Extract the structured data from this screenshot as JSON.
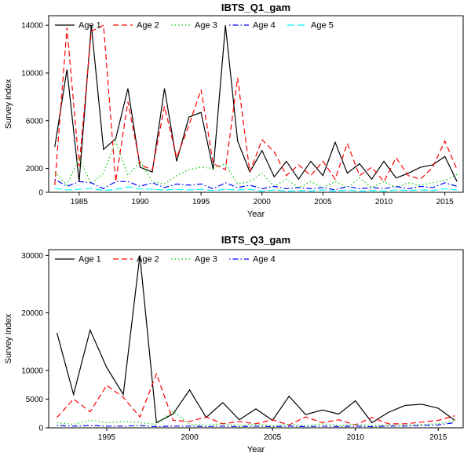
{
  "figure": {
    "background": "#ffffff"
  },
  "chart_data": [
    {
      "type": "line",
      "title": "IBTS_Q1_gam",
      "xlabel": "Year",
      "ylabel": "Survey index",
      "xlim": [
        1982.5,
        2016.5
      ],
      "ylim": [
        0,
        14800
      ],
      "xticks": [
        1985,
        1990,
        1995,
        2000,
        2005,
        2010,
        2015
      ],
      "yticks": [
        0,
        2000,
        6000,
        10000,
        14000
      ],
      "grid": false,
      "legend_position": "top-left-horizontal",
      "x": [
        1983,
        1984,
        1985,
        1986,
        1987,
        1988,
        1989,
        1990,
        1991,
        1992,
        1993,
        1994,
        1995,
        1996,
        1997,
        1998,
        1999,
        2000,
        2001,
        2002,
        2003,
        2004,
        2005,
        2006,
        2007,
        2008,
        2009,
        2010,
        2011,
        2012,
        2013,
        2014,
        2015,
        2016
      ],
      "series": [
        {
          "name": "Age 1",
          "color": "#000000",
          "dash": "solid",
          "values": [
            3800,
            10300,
            900,
            14000,
            3600,
            4500,
            8700,
            2100,
            1700,
            8700,
            2600,
            6300,
            6700,
            1900,
            14000,
            4300,
            1700,
            3500,
            1300,
            2600,
            1100,
            2600,
            1400,
            4200,
            1600,
            2400,
            1100,
            2600,
            1200,
            1600,
            2100,
            2300,
            3000,
            900
          ]
        },
        {
          "name": "Age 2",
          "color": "#ff0000",
          "dash": "dashed",
          "values": [
            600,
            13800,
            2200,
            13500,
            14000,
            900,
            7600,
            2300,
            1900,
            7200,
            2900,
            5600,
            8600,
            2400,
            1900,
            9600,
            1700,
            4400,
            3400,
            1400,
            2300,
            1400,
            2600,
            1100,
            4100,
            1400,
            2100,
            900,
            2900,
            1400,
            1100,
            2100,
            4300,
            1900
          ]
        },
        {
          "name": "Age 3",
          "color": "#00cd00",
          "dash": "dotted",
          "values": [
            1700,
            600,
            2900,
            700,
            1600,
            4300,
            1400,
            2600,
            900,
            700,
            1400,
            1900,
            2100,
            2000,
            2400,
            700,
            900,
            1600,
            500,
            1100,
            400,
            900,
            400,
            900,
            400,
            1200,
            400,
            900,
            400,
            800,
            600,
            800,
            1000,
            1500
          ]
        },
        {
          "name": "Age 4",
          "color": "#0000ff",
          "dash": "dotdash",
          "values": [
            1100,
            500,
            900,
            800,
            300,
            900,
            900,
            500,
            800,
            400,
            700,
            600,
            700,
            300,
            800,
            400,
            600,
            300,
            500,
            300,
            400,
            300,
            400,
            200,
            500,
            300,
            400,
            300,
            500,
            300,
            500,
            400,
            800,
            500
          ]
        },
        {
          "name": "Age 5",
          "color": "#00ffff",
          "dash": "longdash",
          "values": [
            350,
            200,
            250,
            350,
            150,
            250,
            450,
            300,
            250,
            200,
            250,
            200,
            250,
            150,
            250,
            200,
            250,
            100,
            200,
            100,
            150,
            100,
            200,
            100,
            200,
            100,
            150,
            100,
            200,
            150,
            200,
            150,
            300,
            200
          ]
        }
      ]
    },
    {
      "type": "line",
      "title": "IBTS_Q3_gam",
      "xlabel": "Year",
      "ylabel": "Survey index",
      "xlim": [
        1991.5,
        2016.5
      ],
      "ylim": [
        0,
        31000
      ],
      "xticks": [
        1995,
        2000,
        2005,
        2010,
        2015
      ],
      "yticks": [
        0,
        5000,
        10000,
        20000,
        30000
      ],
      "grid": false,
      "legend_position": "top-left-horizontal",
      "x": [
        1992,
        1993,
        1994,
        1995,
        1996,
        1997,
        1998,
        1999,
        2000,
        2001,
        2002,
        2003,
        2004,
        2005,
        2006,
        2007,
        2008,
        2009,
        2010,
        2011,
        2012,
        2013,
        2014,
        2015,
        2016
      ],
      "series": [
        {
          "name": "Age 1",
          "color": "#000000",
          "dash": "solid",
          "values": [
            16500,
            5800,
            17000,
            10500,
            5800,
            30000,
            900,
            2400,
            6600,
            1800,
            4400,
            1400,
            3300,
            1300,
            5500,
            2300,
            3100,
            2400,
            4700,
            900,
            2700,
            3900,
            4100,
            3400,
            1300
          ]
        },
        {
          "name": "Age 2",
          "color": "#ff0000",
          "dash": "dashed",
          "values": [
            1800,
            5000,
            2800,
            7400,
            5300,
            1900,
            9400,
            1300,
            1100,
            1900,
            700,
            1100,
            700,
            1400,
            500,
            1900,
            900,
            1400,
            500,
            1800,
            700,
            700,
            1000,
            1300,
            2100
          ]
        },
        {
          "name": "Age 3",
          "color": "#00cd00",
          "dash": "dotted",
          "values": [
            900,
            600,
            1300,
            900,
            1100,
            900,
            600,
            2900,
            600,
            500,
            700,
            400,
            600,
            400,
            600,
            400,
            700,
            400,
            600,
            400,
            500,
            500,
            600,
            700,
            1200
          ]
        },
        {
          "name": "Age 4",
          "color": "#0000ff",
          "dash": "dotdash",
          "values": [
            400,
            300,
            400,
            300,
            300,
            400,
            200,
            300,
            300,
            200,
            300,
            200,
            300,
            200,
            300,
            200,
            300,
            200,
            300,
            200,
            300,
            300,
            400,
            500,
            900
          ]
        }
      ]
    }
  ]
}
